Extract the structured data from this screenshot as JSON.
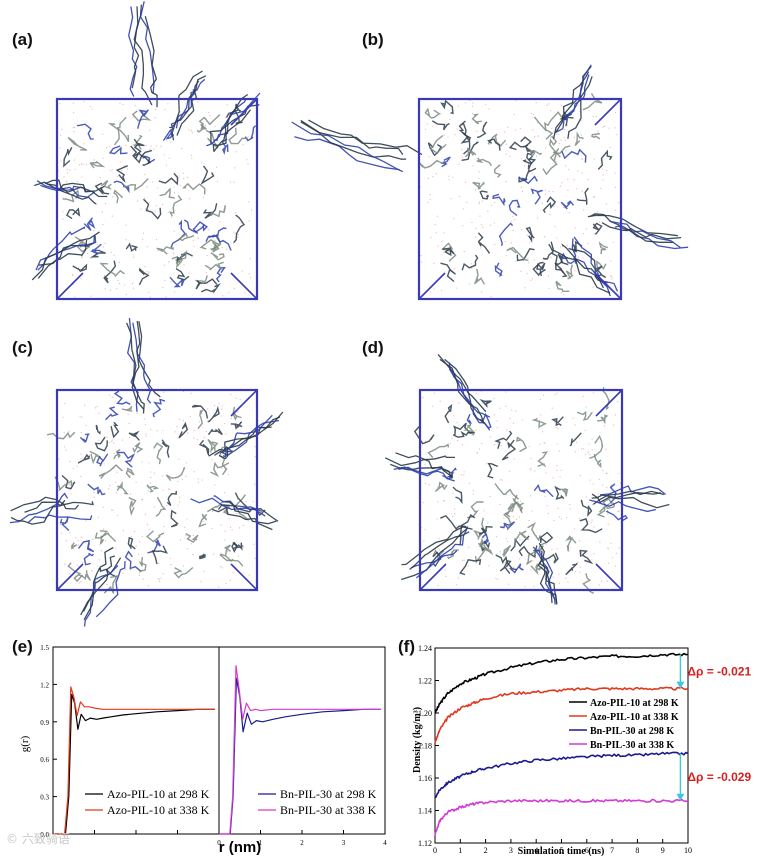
{
  "figure": {
    "panel_labels": [
      "(a)",
      "(b)",
      "(c)",
      "(d)",
      "(e)",
      "(f)"
    ],
    "watermark": "© 六致骑语",
    "snapshot_colors": {
      "box": "#3a3ab8",
      "molecule": "#7a8a80",
      "molecule_dark": "#2a3a4a",
      "nitrogen": "#2b3fb0",
      "solvent": "#e8a0a0"
    }
  },
  "chart_data": [
    {
      "id": "e-left",
      "type": "line",
      "title": "",
      "xlabel": "",
      "ylabel": "g(r)",
      "xlim": [
        0,
        4
      ],
      "ylim": [
        0.0,
        1.5
      ],
      "xticks": [
        0,
        1,
        2,
        3
      ],
      "yticks": [
        0.0,
        0.3,
        0.6,
        0.9,
        1.2,
        1.5
      ],
      "ytick_labels": [
        "0.0",
        "0.3",
        "0.6",
        "0.9",
        "1.2",
        "1.5"
      ],
      "legend_position": "bottom-left",
      "series": [
        {
          "name": "Azo-PIL-10 at 298 K",
          "color": "#000000",
          "x": [
            0.0,
            0.3,
            0.38,
            0.45,
            0.52,
            0.6,
            0.68,
            0.78,
            0.9,
            1.05,
            1.2,
            1.4,
            1.7,
            2.0,
            2.5,
            3.0,
            3.5,
            3.9
          ],
          "y": [
            0.0,
            0.0,
            0.3,
            1.12,
            1.05,
            0.84,
            0.96,
            0.91,
            0.93,
            0.92,
            0.93,
            0.94,
            0.955,
            0.965,
            0.98,
            0.99,
            1.0,
            1.0
          ]
        },
        {
          "name": "Azo-PIL-10 at 338 K",
          "color": "#e03a1e",
          "x": [
            0.0,
            0.28,
            0.36,
            0.43,
            0.5,
            0.58,
            0.66,
            0.76,
            0.88,
            1.0,
            1.2,
            1.5,
            2.0,
            2.5,
            3.0,
            3.5,
            3.9
          ],
          "y": [
            0.0,
            0.0,
            0.3,
            1.18,
            1.1,
            0.95,
            1.06,
            1.02,
            1.02,
            1.01,
            1.0,
            1.0,
            1.0,
            1.0,
            1.0,
            1.0,
            1.0
          ]
        }
      ]
    },
    {
      "id": "e-right",
      "type": "line",
      "title": "",
      "xlabel": "r (nm)",
      "ylabel": "",
      "xlim": [
        0,
        4
      ],
      "ylim": [
        0.0,
        1.5
      ],
      "xticks": [
        0,
        1,
        2,
        3,
        4
      ],
      "xtick_labels": [
        "0",
        "1",
        "2",
        "3",
        "4"
      ],
      "legend_position": "bottom-right",
      "series": [
        {
          "name": "Bn-PIL-30 at 298 K",
          "color": "#1a1a8c",
          "x": [
            0.0,
            0.27,
            0.34,
            0.42,
            0.5,
            0.58,
            0.68,
            0.78,
            0.9,
            1.05,
            1.3,
            1.6,
            2.0,
            2.5,
            3.0,
            3.5,
            3.9
          ],
          "y": [
            0.0,
            0.0,
            0.3,
            1.25,
            1.1,
            0.82,
            0.97,
            0.88,
            0.91,
            0.9,
            0.92,
            0.94,
            0.96,
            0.98,
            0.99,
            1.0,
            1.0
          ]
        },
        {
          "name": "Bn-PIL-30 at 338 K",
          "color": "#d43ad4",
          "x": [
            0.0,
            0.26,
            0.33,
            0.41,
            0.49,
            0.57,
            0.66,
            0.76,
            0.88,
            1.0,
            1.3,
            1.6,
            2.0,
            2.5,
            3.0,
            3.5,
            3.9
          ],
          "y": [
            0.0,
            0.0,
            0.3,
            1.35,
            1.15,
            0.92,
            1.05,
            0.99,
            1.0,
            0.99,
            1.0,
            1.0,
            1.0,
            1.0,
            1.0,
            1.0,
            1.0
          ]
        }
      ]
    },
    {
      "id": "f",
      "type": "line",
      "title": "",
      "xlabel": "Simulation time (ns)",
      "ylabel": "Density (kg/m³)",
      "xlim": [
        0,
        10
      ],
      "ylim": [
        1.12,
        1.24
      ],
      "xticks": [
        0,
        1,
        2,
        3,
        4,
        5,
        6,
        7,
        8,
        9,
        10
      ],
      "yticks": [
        1.12,
        1.14,
        1.16,
        1.18,
        1.2,
        1.22,
        1.24
      ],
      "ytick_labels": [
        "1.12",
        "1.14",
        "1.16",
        "1.18",
        "1.20",
        "1.22",
        "1.24"
      ],
      "legend_position": "center-right",
      "series": [
        {
          "name": "Azo-PIL-10 at 298 K",
          "color": "#000000",
          "x": [
            0,
            0.2,
            0.5,
            1,
            1.5,
            2,
            3,
            4,
            5,
            6,
            7,
            8,
            9,
            10
          ],
          "y": [
            1.2,
            1.206,
            1.212,
            1.218,
            1.221,
            1.224,
            1.228,
            1.231,
            1.233,
            1.234,
            1.235,
            1.235,
            1.236,
            1.236
          ]
        },
        {
          "name": "Azo-PIL-10 at 338 K",
          "color": "#e03a1e",
          "x": [
            0,
            0.2,
            0.5,
            1,
            1.5,
            2,
            3,
            4,
            5,
            6,
            7,
            8,
            9,
            10
          ],
          "y": [
            1.182,
            1.19,
            1.197,
            1.203,
            1.206,
            1.209,
            1.212,
            1.213,
            1.214,
            1.215,
            1.215,
            1.215,
            1.215,
            1.215
          ]
        },
        {
          "name": "Bn-PIL-30 at 298 K",
          "color": "#1a1a8c",
          "x": [
            0,
            0.2,
            0.5,
            1,
            1.5,
            2,
            3,
            4,
            5,
            6,
            7,
            8,
            9,
            10
          ],
          "y": [
            1.148,
            1.153,
            1.157,
            1.161,
            1.164,
            1.166,
            1.169,
            1.171,
            1.172,
            1.173,
            1.174,
            1.174,
            1.175,
            1.175
          ]
        },
        {
          "name": "Bn-PIL-30 at 338 K",
          "color": "#d43ad4",
          "x": [
            0,
            0.2,
            0.5,
            1,
            1.5,
            2,
            3,
            4,
            5,
            6,
            7,
            8,
            9,
            10
          ],
          "y": [
            1.125,
            1.134,
            1.139,
            1.142,
            1.144,
            1.145,
            1.146,
            1.146,
            1.146,
            1.146,
            1.146,
            1.146,
            1.146,
            1.146
          ]
        }
      ],
      "annotations": [
        {
          "text": "Δρ = -0.021",
          "color": "#d62020",
          "x": 9.7,
          "from": 1.236,
          "to": 1.215
        },
        {
          "text": "Δρ = -0.029",
          "color": "#d62020",
          "x": 9.7,
          "from": 1.175,
          "to": 1.146
        }
      ]
    }
  ]
}
